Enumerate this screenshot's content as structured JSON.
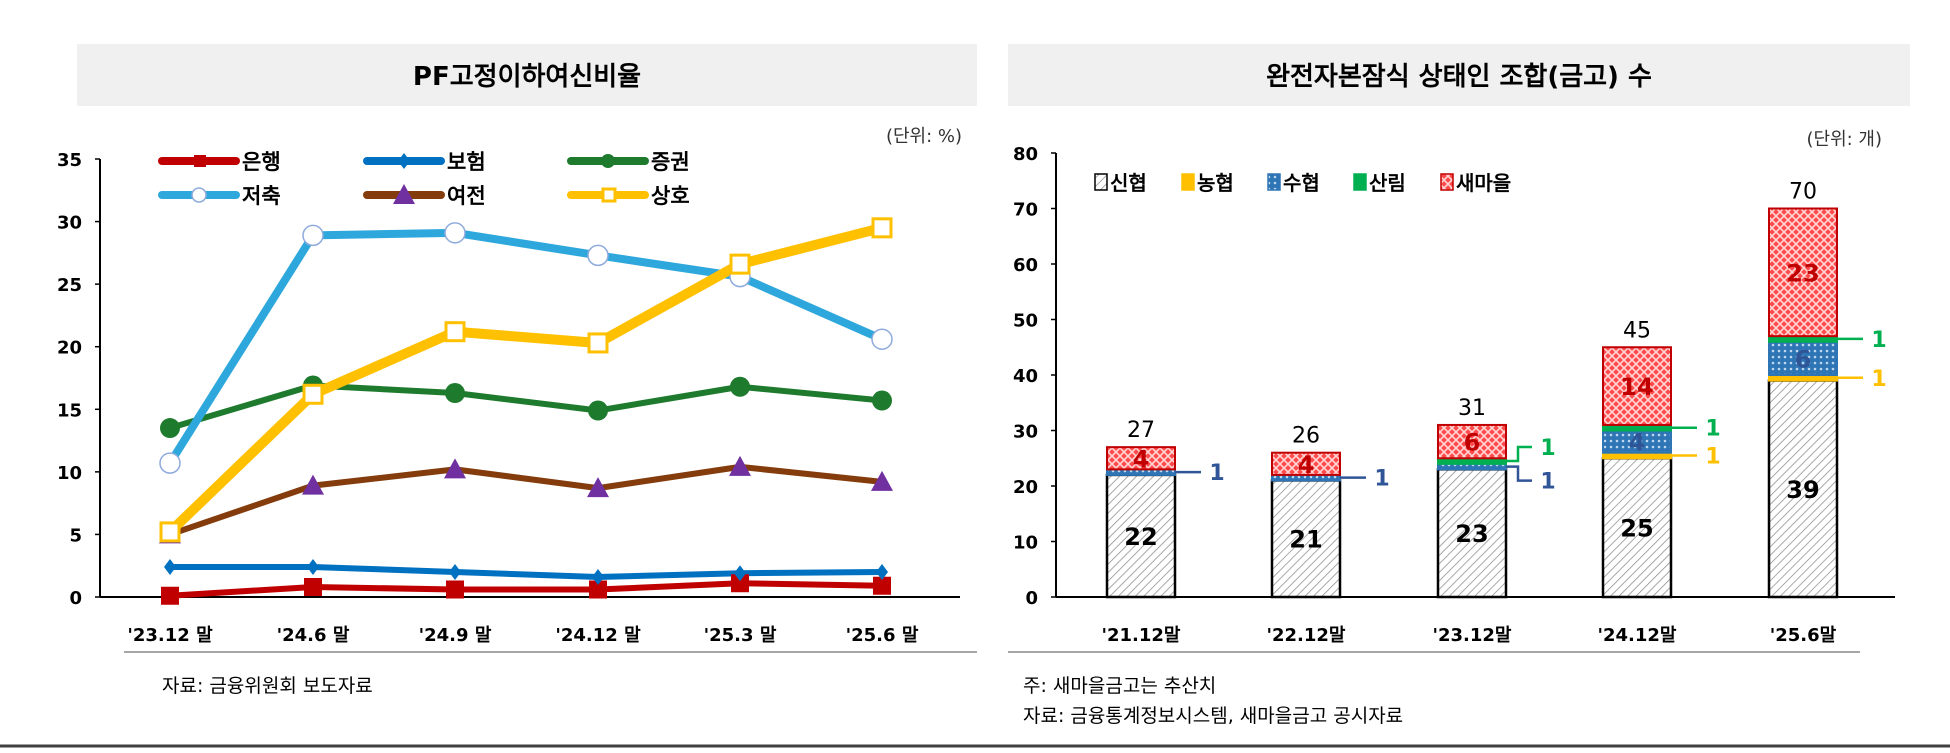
{
  "chart_data": [
    {
      "type": "line",
      "title": "PF고정이하여신비율",
      "unit_label": "(단위: %)",
      "categories": [
        "'23.12 말",
        "'24.6 말",
        "'24.9 말",
        "'24.12 말",
        "'25.3 말",
        "'25.6 말"
      ],
      "ylim": [
        0,
        35
      ],
      "yticks": [
        0,
        5,
        10,
        15,
        20,
        25,
        30,
        35
      ],
      "grid": false,
      "legend_position": "top-left",
      "series": [
        {
          "name": "은행",
          "color": "#c00000",
          "marker": "square",
          "values": [
            0.1,
            0.8,
            0.6,
            0.6,
            1.1,
            0.9
          ]
        },
        {
          "name": "보험",
          "color": "#0070c0",
          "marker": "diamond",
          "values": [
            2.4,
            2.4,
            2.0,
            1.6,
            1.9,
            2.0
          ]
        },
        {
          "name": "증권",
          "color": "#1e7b2e",
          "marker": "circle",
          "values": [
            13.5,
            16.9,
            16.3,
            14.9,
            16.8,
            15.7
          ]
        },
        {
          "name": "저축",
          "color": "#2ea8dc",
          "marker": "open-circle",
          "values": [
            10.7,
            28.9,
            29.1,
            27.3,
            25.6,
            20.6
          ]
        },
        {
          "name": "여전",
          "color": "#843c0c",
          "marker": "triangle",
          "values": [
            5.0,
            8.9,
            10.2,
            8.7,
            10.4,
            9.2
          ]
        },
        {
          "name": "상호",
          "color": "#ffc000",
          "marker": "open-square",
          "values": [
            5.2,
            16.2,
            21.2,
            20.3,
            26.6,
            29.5
          ]
        }
      ],
      "source": "자료: 금융위원회 보도자료"
    },
    {
      "type": "bar",
      "stacked": true,
      "title": "완전자본잠식 상태인 조합(금고) 수",
      "unit_label": "(단위: 개)",
      "categories": [
        "'21.12말",
        "'22.12말",
        "'23.12말",
        "'24.12말",
        "'25.6말"
      ],
      "ylim": [
        0,
        80
      ],
      "yticks": [
        0,
        10,
        20,
        30,
        40,
        50,
        60,
        70,
        80
      ],
      "grid": false,
      "legend_position": "top-left",
      "series": [
        {
          "name": "신협",
          "color": "#7f7f7f",
          "label_color": "#000000",
          "values": [
            22,
            21,
            23,
            25,
            39
          ]
        },
        {
          "name": "농협",
          "color": "#ffc000",
          "label_color": "#ffc000",
          "values": [
            0,
            0,
            0,
            1,
            1
          ]
        },
        {
          "name": "수협",
          "color": "#2e75b6",
          "label_color": "#2f5597",
          "values": [
            1,
            1,
            1,
            4,
            6
          ]
        },
        {
          "name": "산림",
          "color": "#00b050",
          "label_color": "#00b050",
          "values": [
            0,
            0,
            1,
            1,
            1
          ]
        },
        {
          "name": "새마을",
          "color": "#ff0000",
          "label_color": "#c00000",
          "values": [
            4,
            4,
            6,
            14,
            23
          ]
        }
      ],
      "totals": [
        27,
        26,
        31,
        45,
        70
      ],
      "notes": [
        "주: 새마을금고는 추산치",
        "자료: 금융통계정보시스템, 새마을금고 공시자료"
      ]
    }
  ]
}
